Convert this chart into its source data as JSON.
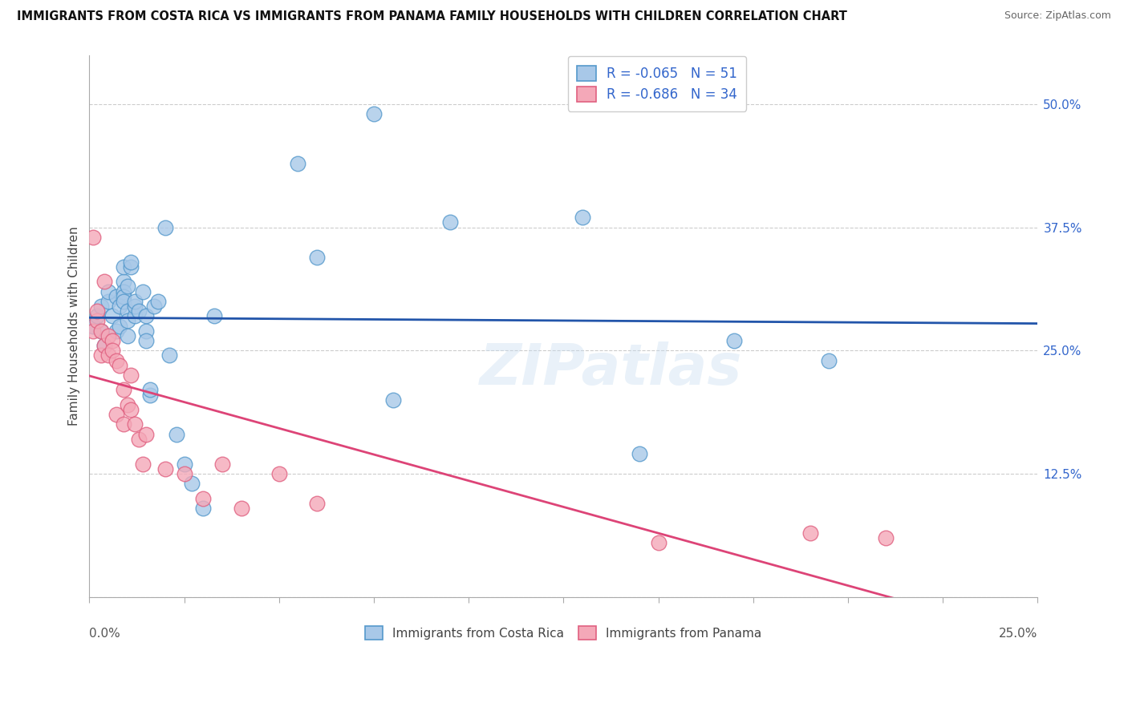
{
  "title": "IMMIGRANTS FROM COSTA RICA VS IMMIGRANTS FROM PANAMA FAMILY HOUSEHOLDS WITH CHILDREN CORRELATION CHART",
  "source": "Source: ZipAtlas.com",
  "legend1_label": "R = -0.065   N = 51",
  "legend2_label": "R = -0.686   N = 34",
  "blue_face": "#a8c8e8",
  "pink_face": "#f4a8b8",
  "blue_edge": "#5599cc",
  "pink_edge": "#e06080",
  "trend_blue": "#2255aa",
  "trend_pink": "#dd4477",
  "ylim": [
    0.0,
    0.55
  ],
  "xlim": [
    0.0,
    0.25
  ],
  "yticks": [
    0.0,
    0.125,
    0.25,
    0.375,
    0.5
  ],
  "xticks": [
    0.0,
    0.025,
    0.05,
    0.075,
    0.1,
    0.125,
    0.15,
    0.175,
    0.2,
    0.225,
    0.25
  ],
  "watermark": "ZIPatlas",
  "ylabel": "Family Households with Children",
  "costa_rica_x": [
    0.001,
    0.002,
    0.003,
    0.003,
    0.004,
    0.005,
    0.005,
    0.006,
    0.007,
    0.007,
    0.008,
    0.008,
    0.009,
    0.009,
    0.009,
    0.009,
    0.009,
    0.01,
    0.01,
    0.01,
    0.01,
    0.011,
    0.011,
    0.012,
    0.012,
    0.012,
    0.013,
    0.014,
    0.015,
    0.015,
    0.015,
    0.016,
    0.016,
    0.017,
    0.018,
    0.02,
    0.021,
    0.023,
    0.025,
    0.027,
    0.03,
    0.033,
    0.055,
    0.06,
    0.075,
    0.08,
    0.095,
    0.13,
    0.145,
    0.17,
    0.195
  ],
  "costa_rica_y": [
    0.275,
    0.285,
    0.27,
    0.295,
    0.255,
    0.3,
    0.31,
    0.285,
    0.27,
    0.305,
    0.275,
    0.295,
    0.32,
    0.335,
    0.31,
    0.305,
    0.3,
    0.315,
    0.29,
    0.28,
    0.265,
    0.335,
    0.34,
    0.285,
    0.295,
    0.3,
    0.29,
    0.31,
    0.285,
    0.27,
    0.26,
    0.205,
    0.21,
    0.295,
    0.3,
    0.375,
    0.245,
    0.165,
    0.135,
    0.115,
    0.09,
    0.285,
    0.44,
    0.345,
    0.49,
    0.2,
    0.38,
    0.385,
    0.145,
    0.26,
    0.24
  ],
  "panama_x": [
    0.001,
    0.001,
    0.002,
    0.002,
    0.003,
    0.003,
    0.004,
    0.004,
    0.005,
    0.005,
    0.006,
    0.006,
    0.007,
    0.007,
    0.008,
    0.009,
    0.009,
    0.01,
    0.011,
    0.011,
    0.012,
    0.013,
    0.014,
    0.015,
    0.02,
    0.025,
    0.03,
    0.035,
    0.04,
    0.05,
    0.06,
    0.15,
    0.19,
    0.21
  ],
  "panama_y": [
    0.27,
    0.365,
    0.28,
    0.29,
    0.245,
    0.27,
    0.255,
    0.32,
    0.245,
    0.265,
    0.26,
    0.25,
    0.24,
    0.185,
    0.235,
    0.21,
    0.175,
    0.195,
    0.225,
    0.19,
    0.175,
    0.16,
    0.135,
    0.165,
    0.13,
    0.125,
    0.1,
    0.135,
    0.09,
    0.125,
    0.095,
    0.055,
    0.065,
    0.06
  ]
}
